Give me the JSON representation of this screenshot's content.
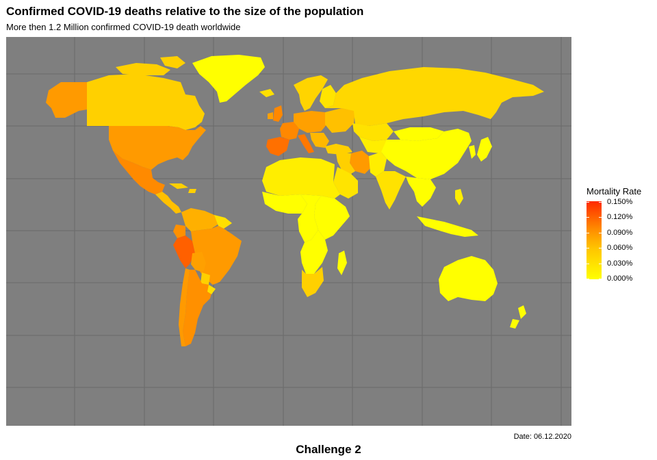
{
  "chart": {
    "title": "Confirmed COVID-19 deaths relative to the size of the population",
    "subtitle": "More then 1.2 Million confirmed COVID-19 death worldwide",
    "date": "Date: 06.12.2020",
    "caption": "Challenge 2"
  },
  "legend": {
    "title": "Mortality Rate",
    "labels": [
      "0.150%",
      "0.120%",
      "0.090%",
      "0.060%",
      "0.030%",
      "0.000%"
    ],
    "colors": {
      "low": "#ffff00",
      "mid": "#ffc400",
      "high": "#ff2a00"
    }
  },
  "colors": {
    "panel": "#7f7f7f",
    "grid": "#6a6a6a",
    "land_default": "#ffd400"
  }
}
